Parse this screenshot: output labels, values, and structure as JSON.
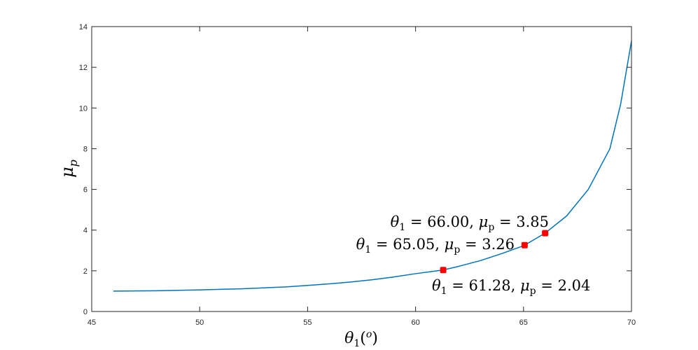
{
  "chart_data": {
    "type": "line",
    "title": "",
    "xlabel": "θ1(o)",
    "ylabel": "μp",
    "xlim": [
      45,
      70
    ],
    "ylim": [
      0,
      14
    ],
    "xticks": [
      45,
      50,
      55,
      60,
      65,
      70
    ],
    "yticks": [
      0,
      2,
      4,
      6,
      8,
      10,
      12,
      14
    ],
    "grid": false,
    "legend": "none",
    "line_color": "#0072BD",
    "marker_color": "#FF0000",
    "series": [
      {
        "x": [
          46,
          48,
          50,
          52,
          54,
          55,
          56,
          57,
          58,
          59,
          60,
          61,
          61.28,
          62,
          63,
          64,
          65,
          65.05,
          66,
          67,
          68,
          69,
          69.5,
          70
        ],
        "y": [
          1.0,
          1.02,
          1.06,
          1.12,
          1.21,
          1.28,
          1.36,
          1.45,
          1.56,
          1.7,
          1.86,
          2.0,
          2.04,
          2.22,
          2.5,
          2.85,
          3.23,
          3.26,
          3.85,
          4.7,
          6.0,
          8.0,
          10.2,
          13.3
        ]
      }
    ],
    "highlighted_points": [
      {
        "x": 61.28,
        "y": 2.04,
        "label_theta": "61.28",
        "label_mu": "2.04",
        "label_position": "below-right"
      },
      {
        "x": 65.05,
        "y": 3.26,
        "label_theta": "65.05",
        "label_mu": "3.26",
        "label_position": "left"
      },
      {
        "x": 66.0,
        "y": 3.85,
        "label_theta": "66.00",
        "label_mu": "3.85",
        "label_position": "above-left"
      }
    ]
  }
}
